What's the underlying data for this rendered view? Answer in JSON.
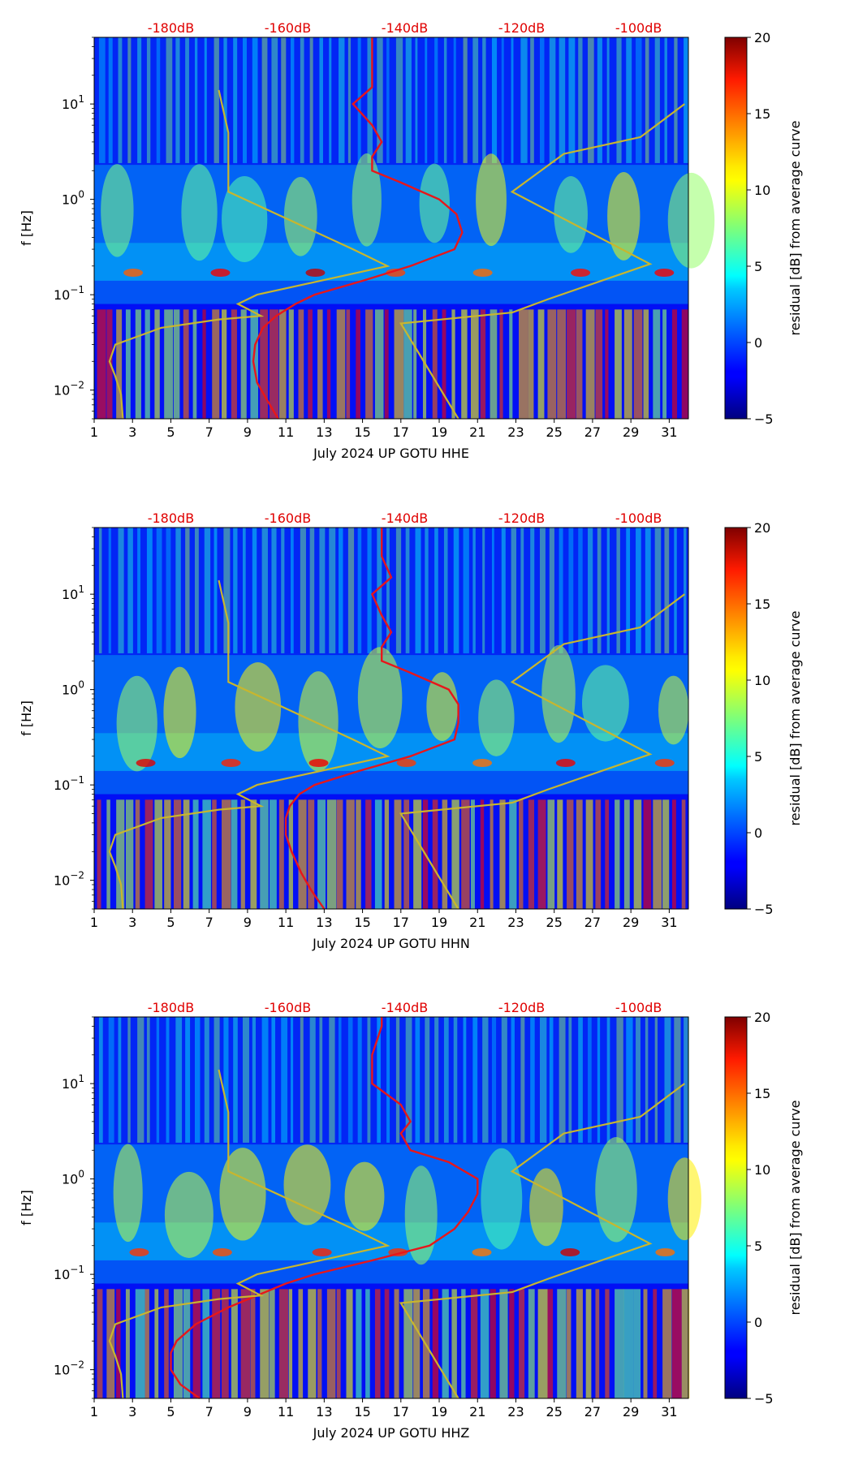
{
  "charts": [
    {
      "xlabel": "July 2024 UP GOTU  HHE"
    },
    {
      "xlabel": "July 2024 UP GOTU  HHN"
    },
    {
      "xlabel": "July 2024 UP GOTU  HHZ"
    }
  ],
  "chart_data": [
    {
      "type": "heatmap",
      "title": "",
      "xlabel": "July 2024 UP GOTU  HHE",
      "ylabel": "f [Hz]",
      "xticks": [
        "1",
        "3",
        "5",
        "7",
        "9",
        "11",
        "13",
        "15",
        "17",
        "19",
        "21",
        "23",
        "25",
        "27",
        "29",
        "31"
      ],
      "yticks": [
        "10^-2",
        "10^-1",
        "10^0",
        "10^1"
      ],
      "db_ticks": [
        "-180dB",
        "-160dB",
        "-140dB",
        "-120dB",
        "-100dB"
      ],
      "colorbar": {
        "label": "residual [dB] from average curve",
        "ticks": [
          "20",
          "15",
          "10",
          "5",
          "0",
          "−5"
        ],
        "range": [
          -5,
          20
        ],
        "colormap": "jet"
      },
      "xlim": [
        1,
        32
      ],
      "ylim_hz": [
        0.005,
        50
      ],
      "red_curve": {
        "name": "average PSD (dB)",
        "freq_hz": [
          0.005,
          0.008,
          0.012,
          0.02,
          0.03,
          0.045,
          0.06,
          0.08,
          0.1,
          0.14,
          0.2,
          0.3,
          0.45,
          0.7,
          1.0,
          1.5,
          2.0,
          2.8,
          4,
          6,
          10,
          15,
          25,
          40,
          50
        ],
        "day": [
          10.6,
          10.0,
          9.5,
          9.3,
          9.4,
          9.8,
          10.5,
          11.5,
          12.5,
          15.0,
          17.5,
          19.8,
          20.2,
          19.9,
          19.0,
          17.0,
          15.5,
          15.5,
          16.0,
          15.5,
          14.5,
          15.5,
          15.5,
          15.5,
          15.5
        ]
      },
      "yellow_curve": {
        "name": "noise model",
        "points": [
          [
            2.5,
            0.005
          ],
          [
            2.4,
            0.009
          ],
          [
            2.1,
            0.014
          ],
          [
            1.8,
            0.02
          ],
          [
            2.1,
            0.03
          ],
          [
            4.5,
            0.045
          ],
          [
            7.5,
            0.055
          ],
          [
            9.7,
            0.06
          ],
          [
            8.5,
            0.08
          ],
          [
            9.5,
            0.1
          ],
          [
            16.3,
            0.2
          ],
          [
            14.5,
            0.3
          ],
          [
            8,
            1.2
          ],
          [
            8,
            5
          ],
          [
            7.5,
            14
          ]
        ]
      },
      "yellow_curve_2": {
        "name": "noise model (right)",
        "points": [
          [
            20.0,
            0.005
          ],
          [
            17.0,
            0.05
          ],
          [
            22.8,
            0.065
          ],
          [
            24.7,
            0.09
          ],
          [
            30.0,
            0.21
          ],
          [
            22.8,
            1.2
          ],
          [
            25.5,
            3.0
          ],
          [
            29.5,
            4.5
          ],
          [
            31.8,
            10
          ]
        ]
      }
    },
    {
      "type": "heatmap",
      "title": "",
      "xlabel": "July 2024 UP GOTU  HHN",
      "ylabel": "f [Hz]",
      "xticks": [
        "1",
        "3",
        "5",
        "7",
        "9",
        "11",
        "13",
        "15",
        "17",
        "19",
        "21",
        "23",
        "25",
        "27",
        "29",
        "31"
      ],
      "yticks": [
        "10^-2",
        "10^-1",
        "10^0",
        "10^1"
      ],
      "db_ticks": [
        "-180dB",
        "-160dB",
        "-140dB",
        "-120dB",
        "-100dB"
      ],
      "colorbar": {
        "label": "residual [dB] from average curve",
        "ticks": [
          "20",
          "15",
          "10",
          "5",
          "0",
          "−5"
        ],
        "range": [
          -5,
          20
        ],
        "colormap": "jet"
      },
      "xlim": [
        1,
        32
      ],
      "ylim_hz": [
        0.005,
        50
      ],
      "red_curve": {
        "name": "average PSD (dB)",
        "freq_hz": [
          0.005,
          0.008,
          0.012,
          0.02,
          0.03,
          0.045,
          0.06,
          0.08,
          0.1,
          0.14,
          0.2,
          0.3,
          0.45,
          0.7,
          1.0,
          1.5,
          2.0,
          2.8,
          4,
          6,
          10,
          15,
          25,
          40,
          50
        ],
        "day": [
          13.0,
          12.3,
          11.8,
          11.3,
          11.0,
          11.0,
          11.2,
          11.7,
          12.5,
          14.8,
          17.5,
          19.8,
          20.0,
          20.0,
          19.5,
          17.5,
          16.0,
          16.0,
          16.5,
          16.0,
          15.5,
          16.5,
          16.0,
          16.0,
          16.0
        ]
      },
      "yellow_curve": {
        "name": "noise model",
        "points": [
          [
            2.5,
            0.005
          ],
          [
            2.4,
            0.009
          ],
          [
            2.1,
            0.014
          ],
          [
            1.8,
            0.02
          ],
          [
            2.1,
            0.03
          ],
          [
            4.5,
            0.045
          ],
          [
            7.5,
            0.055
          ],
          [
            9.7,
            0.06
          ],
          [
            8.5,
            0.08
          ],
          [
            9.5,
            0.1
          ],
          [
            16.3,
            0.2
          ],
          [
            14.5,
            0.3
          ],
          [
            8,
            1.2
          ],
          [
            8,
            5
          ],
          [
            7.5,
            14
          ]
        ]
      },
      "yellow_curve_2": {
        "name": "noise model (right)",
        "points": [
          [
            20.0,
            0.005
          ],
          [
            17.0,
            0.05
          ],
          [
            22.8,
            0.065
          ],
          [
            24.7,
            0.09
          ],
          [
            30.0,
            0.21
          ],
          [
            22.8,
            1.2
          ],
          [
            25.5,
            3.0
          ],
          [
            29.5,
            4.5
          ],
          [
            31.8,
            10
          ]
        ]
      }
    },
    {
      "type": "heatmap",
      "title": "",
      "xlabel": "July 2024 UP GOTU  HHZ",
      "ylabel": "f [Hz]",
      "xticks": [
        "1",
        "3",
        "5",
        "7",
        "9",
        "11",
        "13",
        "15",
        "17",
        "19",
        "21",
        "23",
        "25",
        "27",
        "29",
        "31"
      ],
      "yticks": [
        "10^-2",
        "10^-1",
        "10^0",
        "10^1"
      ],
      "db_ticks": [
        "-180dB",
        "-160dB",
        "-140dB",
        "-120dB",
        "-100dB"
      ],
      "colorbar": {
        "label": "residual [dB] from average curve",
        "ticks": [
          "20",
          "15",
          "10",
          "5",
          "0",
          "−5"
        ],
        "range": [
          -5,
          20
        ],
        "colormap": "jet"
      },
      "xlim": [
        1,
        32
      ],
      "ylim_hz": [
        0.005,
        50
      ],
      "red_curve": {
        "name": "average PSD (dB)",
        "freq_hz": [
          0.005,
          0.007,
          0.01,
          0.015,
          0.02,
          0.03,
          0.045,
          0.06,
          0.08,
          0.1,
          0.14,
          0.2,
          0.3,
          0.45,
          0.7,
          1.0,
          1.5,
          2.0,
          3,
          4,
          6,
          10,
          20,
          40,
          50
        ],
        "day": [
          6.5,
          5.5,
          5.0,
          5.0,
          5.3,
          6.3,
          8.0,
          9.5,
          11.0,
          12.5,
          15.5,
          18.5,
          19.8,
          20.5,
          21.0,
          21.0,
          19.5,
          17.5,
          17.0,
          17.5,
          17.0,
          15.5,
          15.5,
          16.0,
          16.0
        ]
      },
      "yellow_curve": {
        "name": "noise model",
        "points": [
          [
            2.5,
            0.005
          ],
          [
            2.4,
            0.009
          ],
          [
            2.1,
            0.014
          ],
          [
            1.8,
            0.02
          ],
          [
            2.1,
            0.03
          ],
          [
            4.5,
            0.045
          ],
          [
            7.5,
            0.055
          ],
          [
            9.7,
            0.06
          ],
          [
            8.5,
            0.08
          ],
          [
            9.5,
            0.1
          ],
          [
            16.3,
            0.2
          ],
          [
            14.5,
            0.3
          ],
          [
            8,
            1.2
          ],
          [
            8,
            5
          ],
          [
            7.5,
            14
          ]
        ]
      },
      "yellow_curve_2": {
        "name": "noise model (right)",
        "points": [
          [
            20.0,
            0.005
          ],
          [
            17.0,
            0.05
          ],
          [
            22.8,
            0.065
          ],
          [
            24.7,
            0.09
          ],
          [
            30.0,
            0.21
          ],
          [
            22.8,
            1.2
          ],
          [
            25.5,
            3.0
          ],
          [
            29.5,
            4.5
          ],
          [
            31.8,
            10
          ]
        ]
      }
    }
  ]
}
